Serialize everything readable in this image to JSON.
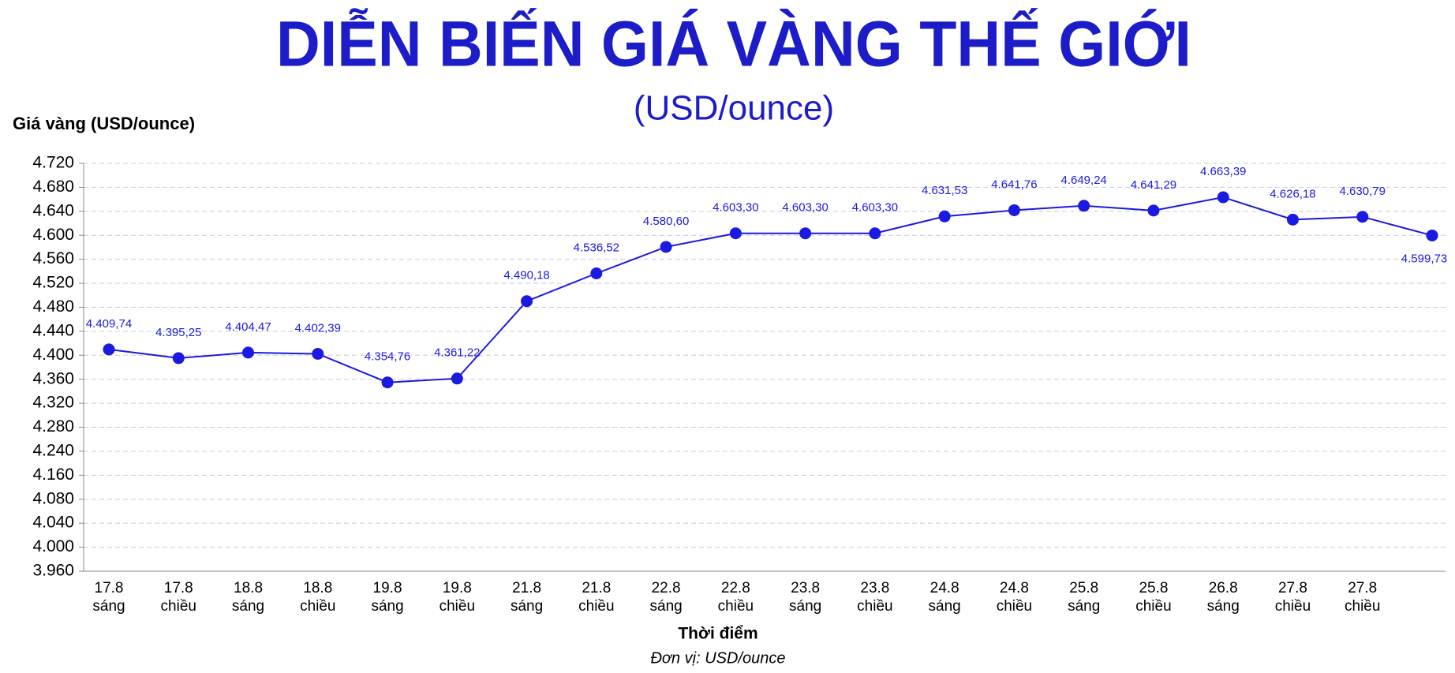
{
  "chart_data": {
    "type": "line",
    "title": "DIỄN BIẾN GIÁ VÀNG THẾ GIỚI",
    "subtitle": "(USD/ounce)",
    "y_label": "Giá vàng (USD/ounce)",
    "x_label": "Thời điểm",
    "note": "Đơn vị: USD/ounce",
    "categories": [
      [
        "17.8",
        "sáng"
      ],
      [
        "17.8",
        "chiều"
      ],
      [
        "18.8",
        "sáng"
      ],
      [
        "18.8",
        "chiều"
      ],
      [
        "19.8",
        "sáng"
      ],
      [
        "19.8",
        "chiều"
      ],
      [
        "21.8",
        "sáng"
      ],
      [
        "21.8",
        "chiều"
      ],
      [
        "22.8",
        "sáng"
      ],
      [
        "22.8",
        "chiều"
      ],
      [
        "23.8",
        "sáng"
      ],
      [
        "23.8",
        "chiều"
      ],
      [
        "24.8",
        "sáng"
      ],
      [
        "24.8",
        "chiều"
      ],
      [
        "25.8",
        "sáng"
      ],
      [
        "25.8",
        "chiều"
      ],
      [
        "26.8",
        "sáng"
      ],
      [
        "27.8",
        "chiều"
      ],
      [
        "27.8",
        "chiều"
      ],
      null
    ],
    "series": [
      {
        "name": "Giá vàng",
        "color": "#1a1ae0",
        "values": [
          4409.74,
          4395.25,
          4404.47,
          4402.39,
          4354.76,
          4361.22,
          4490.18,
          4536.52,
          4580.6,
          4603.3,
          4603.3,
          4603.3,
          4631.53,
          4641.76,
          4649.24,
          4641.29,
          4663.39,
          4626.18,
          4630.79,
          4599.73
        ],
        "value_labels": [
          "4.409,74",
          "4.395,25",
          "4.404,47",
          "4.402,39",
          "4.354,76",
          "4.361,22",
          "4.490,18",
          "4.536,52",
          "4.580,60",
          "4.603,30",
          "4.603,30",
          "4.603,30",
          "4.631,53",
          "4.641,76",
          "4.649,24",
          "4.641,29",
          "4.663,39",
          "4.626,18",
          "4.630,79",
          "4.599,73"
        ]
      }
    ],
    "ylim": [
      3960,
      4720
    ],
    "yticks": [
      {
        "value": 4720,
        "label": "4.720"
      },
      {
        "value": 4680,
        "label": "4.680"
      },
      {
        "value": 4640,
        "label": "4.640"
      },
      {
        "value": 4600,
        "label": "4.600"
      },
      {
        "value": 4560,
        "label": "4.560"
      },
      {
        "value": 4520,
        "label": "4.520"
      },
      {
        "value": 4480,
        "label": "4.480"
      },
      {
        "value": 4440,
        "label": "4.440"
      },
      {
        "value": 4400,
        "label": "4.400"
      },
      {
        "value": 4360,
        "label": "4.360"
      },
      {
        "value": 4320,
        "label": "4.320"
      },
      {
        "value": 4280,
        "label": "4.280"
      },
      {
        "value": 4240,
        "label": "4.240"
      },
      {
        "value": 4160,
        "label": "4.160"
      },
      {
        "value": 4080,
        "label": "4.080"
      },
      {
        "value": 4040,
        "label": "4.040"
      },
      {
        "value": 4000,
        "label": "4.000"
      },
      {
        "value": 3960,
        "label": "3.960"
      }
    ],
    "grid": true
  }
}
